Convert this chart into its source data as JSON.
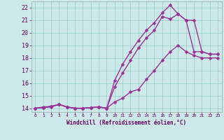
{
  "line1_x": [
    0,
    1,
    2,
    3,
    4,
    5,
    6,
    7,
    8,
    9,
    10,
    11,
    12,
    13,
    14,
    15,
    16,
    17,
    18,
    19,
    20,
    21,
    22,
    23
  ],
  "line1_y": [
    14,
    14.1,
    14.15,
    14.3,
    14.1,
    14.0,
    14.0,
    14.05,
    14.1,
    14.0,
    14.5,
    14.8,
    15.3,
    15.5,
    16.3,
    17.0,
    17.8,
    18.5,
    19.0,
    18.5,
    18.2,
    18.0,
    18.0,
    18.0
  ],
  "line2_x": [
    0,
    1,
    2,
    3,
    4,
    5,
    6,
    7,
    8,
    9,
    10,
    11,
    12,
    13,
    14,
    15,
    16,
    17,
    18,
    19,
    20,
    21,
    22,
    23
  ],
  "line2_y": [
    14,
    14.05,
    14.1,
    14.3,
    14.1,
    14.0,
    14.0,
    14.05,
    14.1,
    14.0,
    15.7,
    16.8,
    17.8,
    18.8,
    19.6,
    20.2,
    21.3,
    21.1,
    21.5,
    21.0,
    18.5,
    18.5,
    18.3,
    18.3
  ],
  "line3_x": [
    0,
    1,
    2,
    3,
    4,
    5,
    6,
    7,
    8,
    9,
    10,
    11,
    12,
    13,
    14,
    15,
    16,
    17,
    18,
    19,
    20,
    21,
    22,
    23
  ],
  "line3_y": [
    14,
    14.05,
    14.15,
    14.3,
    14.1,
    14.0,
    14.0,
    14.05,
    14.1,
    14.0,
    16.2,
    17.5,
    18.5,
    19.4,
    20.2,
    20.8,
    21.6,
    22.2,
    21.5,
    21.0,
    21.0,
    18.5,
    18.3,
    18.3
  ],
  "line_color": "#993399",
  "bg_color": "#cce8e8",
  "grid_color": "#99cccc",
  "xlabel": "Windchill (Refroidissement éolien,°C)",
  "ylabel_ticks": [
    14,
    15,
    16,
    17,
    18,
    19,
    20,
    21,
    22
  ],
  "xlim": [
    -0.5,
    23.5
  ],
  "ylim": [
    13.7,
    22.5
  ],
  "marker": "D",
  "marker_size": 2.5,
  "line_width": 1.0
}
